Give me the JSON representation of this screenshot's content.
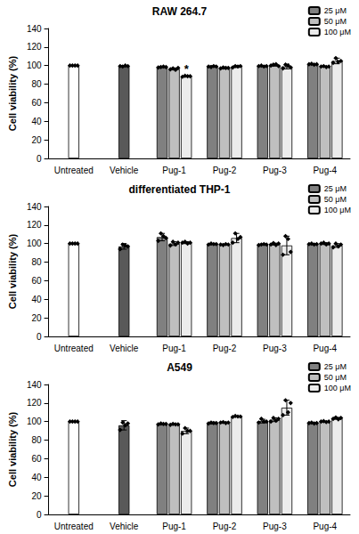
{
  "chart_data": [
    {
      "type": "bar",
      "title": "RAW 264.7",
      "y_label": "Cell viability (%)",
      "categories": [
        "Untreated",
        "Vehicle",
        "Pug-1",
        "Pug-2",
        "Pug-3",
        "Pug-4"
      ],
      "ylim": [
        0,
        140
      ],
      "yticks": [
        0,
        20,
        40,
        60,
        80,
        100,
        120,
        140
      ],
      "grid": false,
      "legend": "top-right",
      "series": [
        {
          "colors": [
            "#ffffff",
            "#595959",
            null,
            null,
            null,
            null
          ],
          "values": [
            100,
            99.5,
            null,
            null,
            null,
            null
          ],
          "errors": [
            0,
            0.5,
            null,
            null,
            null,
            null
          ],
          "points": [
            [
              100,
              100,
              100,
              100
            ],
            [
              99.5,
              99,
              100,
              99.5
            ],
            null,
            null,
            null,
            null
          ]
        },
        {
          "name": "25 μM",
          "color": "#808080",
          "values": [
            null,
            null,
            98.5,
            99,
            99.5,
            101.5
          ],
          "errors": [
            null,
            null,
            0.6,
            0.8,
            0.5,
            0.5
          ],
          "points": [
            null,
            null,
            [
              98,
              98.5,
              99,
              98.5
            ],
            [
              99,
              98.5,
              99.5,
              99
            ],
            [
              99.5,
              100,
              99,
              99.5
            ],
            [
              101.5,
              102,
              101,
              101.5
            ]
          ]
        },
        {
          "name": "50 μM",
          "color": "#bfbfbf",
          "values": [
            null,
            null,
            96.5,
            97.5,
            100.5,
            99
          ],
          "errors": [
            null,
            null,
            1,
            1,
            1,
            0.5
          ],
          "points": [
            null,
            null,
            [
              96,
              97,
              95.5,
              97.5
            ],
            [
              97,
              98,
              97.5,
              97.5
            ],
            [
              100,
              101,
              101.5,
              99.5
            ],
            [
              99,
              99.5,
              98.5,
              99
            ]
          ]
        },
        {
          "name": "100 μM",
          "color": "#ececec",
          "values": [
            null,
            null,
            88.5,
            99,
            99,
            105
          ],
          "errors": [
            null,
            null,
            0.5,
            1,
            2.5,
            3
          ],
          "points": [
            null,
            null,
            [
              88,
              89,
              88.5,
              88.5
            ],
            [
              98,
              99.5,
              99,
              99.5
            ],
            [
              97,
              101,
              100,
              98
            ],
            [
              103,
              108,
              104,
              105
            ]
          ]
        }
      ],
      "annotations": [
        {
          "text": "*",
          "category": "Pug-1",
          "series": "100 μM"
        }
      ]
    },
    {
      "type": "bar",
      "title": "differentiated THP-1",
      "y_label": "Cell viability (%)",
      "categories": [
        "Untreated",
        "Vehicle",
        "Pug-1",
        "Pug-2",
        "Pug-3",
        "Pug-4"
      ],
      "ylim": [
        0,
        140
      ],
      "yticks": [
        0,
        20,
        40,
        60,
        80,
        100,
        120,
        140
      ],
      "grid": false,
      "legend": "top-right",
      "series": [
        {
          "colors": [
            "#ffffff",
            "#595959",
            null,
            null,
            null,
            null
          ],
          "values": [
            100,
            97,
            null,
            null,
            null,
            null
          ],
          "errors": [
            0,
            3,
            null,
            null,
            null,
            null
          ],
          "points": [
            [
              100,
              100,
              100,
              100
            ],
            [
              94,
              99,
              98,
              97
            ],
            null,
            null,
            null,
            null
          ]
        },
        {
          "name": "25 μM",
          "color": "#808080",
          "values": [
            null,
            null,
            107,
            99.5,
            99,
            99.5
          ],
          "errors": [
            null,
            null,
            4,
            0.5,
            0.5,
            0.5
          ],
          "points": [
            null,
            null,
            [
              103,
              111,
              108,
              106
            ],
            [
              99,
              100,
              99.5,
              99.5
            ],
            [
              98.5,
              99,
              99.5,
              99
            ],
            [
              99.5,
              100,
              99,
              99.5
            ]
          ]
        },
        {
          "name": "50 μM",
          "color": "#bfbfbf",
          "values": [
            null,
            null,
            100,
            99,
            99.5,
            100
          ],
          "errors": [
            null,
            null,
            2,
            0.5,
            1,
            1
          ],
          "points": [
            null,
            null,
            [
              98,
              102,
              99,
              101
            ],
            [
              99,
              98.5,
              99.5,
              99
            ],
            [
              99,
              100.5,
              98.5,
              100
            ],
            [
              100,
              101,
              99,
              100
            ]
          ]
        },
        {
          "name": "100 μM",
          "color": "#ececec",
          "values": [
            null,
            null,
            101,
            106,
            98,
            98
          ],
          "errors": [
            null,
            null,
            1,
            5,
            10,
            2
          ],
          "points": [
            null,
            null,
            [
              101,
              102,
              100,
              101
            ],
            [
              101,
              111,
              105,
              107
            ],
            [
              88,
              108,
              105,
              91
            ],
            [
              96,
              100,
              97,
              99
            ]
          ]
        }
      ]
    },
    {
      "type": "bar",
      "title": "A549",
      "y_label": "Cell viability (%)",
      "categories": [
        "Untreated",
        "Vehicle",
        "Pug-1",
        "Pug-2",
        "Pug-3",
        "Pug-4"
      ],
      "ylim": [
        0,
        140
      ],
      "yticks": [
        0,
        20,
        40,
        60,
        80,
        100,
        120,
        140
      ],
      "grid": false,
      "legend": "top-right",
      "series": [
        {
          "colors": [
            "#ffffff",
            "#595959",
            null,
            null,
            null,
            null
          ],
          "values": [
            100,
            96,
            null,
            null,
            null,
            null
          ],
          "errors": [
            0,
            5,
            null,
            null,
            null,
            null
          ],
          "points": [
            [
              100,
              100,
              100,
              100
            ],
            [
              91,
              99,
              96,
              98
            ],
            null,
            null,
            null,
            null
          ]
        },
        {
          "name": "25 μM",
          "color": "#808080",
          "values": [
            null,
            null,
            97.5,
            98.5,
            100.5,
            98.5
          ],
          "errors": [
            null,
            null,
            0.8,
            1,
            2,
            0.5
          ],
          "points": [
            null,
            null,
            [
              97,
              98,
              97.5,
              97.5
            ],
            [
              98,
              99,
              98.5,
              98.5
            ],
            [
              99,
              103,
              100,
              100
            ],
            [
              98.5,
              99,
              98,
              98.5
            ]
          ]
        },
        {
          "name": "50 μM",
          "color": "#bfbfbf",
          "values": [
            null,
            null,
            97,
            99,
            102,
            100
          ],
          "errors": [
            null,
            null,
            0.5,
            0.5,
            2,
            0.5
          ],
          "points": [
            null,
            null,
            [
              96.5,
              97.5,
              97,
              97
            ],
            [
              99,
              99.5,
              98.5,
              99
            ],
            [
              100,
              104,
              101,
              103
            ],
            [
              100,
              100.5,
              99.5,
              100
            ]
          ]
        },
        {
          "name": "100 μM",
          "color": "#ececec",
          "values": [
            null,
            null,
            90,
            105.5,
            115,
            103.5
          ],
          "errors": [
            null,
            null,
            3,
            0.5,
            8,
            1
          ],
          "points": [
            null,
            null,
            [
              87,
              93,
              90,
              90
            ],
            [
              105,
              106,
              105.5,
              105.5
            ],
            [
              107,
              123,
              110,
              120
            ],
            [
              103,
              104.5,
              102.5,
              104
            ]
          ]
        }
      ]
    }
  ]
}
